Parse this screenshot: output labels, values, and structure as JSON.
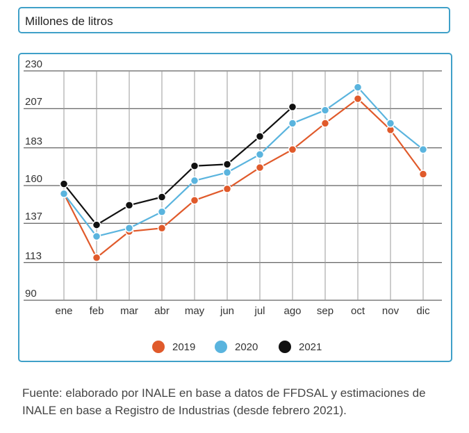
{
  "header": {
    "title": "Millones de litros"
  },
  "footer": {
    "source": "Fuente: elaborado por INALE en base a datos de FFDSAL y estimaciones de INALE en base a Registro de Industrias (desde febrero 2021)."
  },
  "colors": {
    "2019": "#e05a2b",
    "2020": "#5ab4de",
    "2021": "#111111",
    "grid": "#3a3a3a",
    "border": "#3fa0c8"
  },
  "chart_data": {
    "type": "line",
    "title": "Millones de litros",
    "xlabel": "",
    "ylabel": "",
    "ylim": [
      90,
      230
    ],
    "y_ticks": [
      "230",
      "207",
      "183",
      "160",
      "137",
      "113",
      "90"
    ],
    "categories": [
      "ene",
      "feb",
      "mar",
      "abr",
      "may",
      "jun",
      "jul",
      "ago",
      "sep",
      "oct",
      "nov",
      "dic"
    ],
    "series": [
      {
        "name": "2019",
        "color": "#e05a2b",
        "values": [
          155,
          116,
          132,
          134,
          151,
          158,
          171,
          182,
          198,
          213,
          194,
          167
        ]
      },
      {
        "name": "2020",
        "color": "#5ab4de",
        "values": [
          155,
          129,
          134,
          144,
          163,
          168,
          179,
          198,
          206,
          220,
          198,
          182
        ]
      },
      {
        "name": "2021",
        "color": "#111111",
        "values": [
          161,
          136,
          148,
          153,
          172,
          173,
          190,
          208,
          null,
          null,
          null,
          null
        ]
      }
    ],
    "legend": [
      "2019",
      "2020",
      "2021"
    ],
    "legend_position": "bottom-center",
    "grid": true
  }
}
